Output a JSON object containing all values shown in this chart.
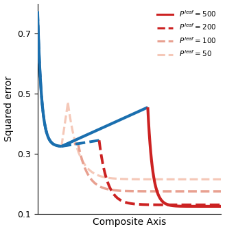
{
  "xlabel": "Composite Axis",
  "ylabel": "Squared error",
  "ylim": [
    0.1,
    0.8
  ],
  "xlim": [
    0.0,
    1.0
  ],
  "curves": [
    {
      "P_leaf": 500,
      "color_descent": "#1a6faf",
      "color_rise": "#1a6faf",
      "color_after": "#cc2222",
      "linestyle": "solid",
      "linewidth": 3.0,
      "start_y": 0.775,
      "valley_x": 0.13,
      "valley_y": 0.325,
      "peak_x": 0.6,
      "peak_y": 0.455,
      "end_y": 0.125
    },
    {
      "P_leaf": 200,
      "color_descent": "#1a6faf",
      "color_rise": "#1a6faf",
      "color_after": "#cc2222",
      "linestyle": "dashed",
      "linewidth": 2.8,
      "start_y": 0.775,
      "valley_x": 0.13,
      "valley_y": 0.325,
      "peak_x": 0.335,
      "peak_y": 0.345,
      "end_y": 0.13
    },
    {
      "P_leaf": 100,
      "color_descent": "#e8a090",
      "color_rise": "#e8a090",
      "color_after": "#e8a090",
      "linestyle": "dashed",
      "linewidth": 2.5,
      "start_y": 0.775,
      "valley_x": 0.13,
      "valley_y": 0.325,
      "peak_x": 0.22,
      "peak_y": 0.335,
      "end_y": 0.175
    },
    {
      "P_leaf": 50,
      "color_descent": "#f5c8b8",
      "color_rise": "#f5c8b8",
      "color_after": "#f5c8b8",
      "linestyle": "dashed",
      "linewidth": 2.3,
      "start_y": 0.775,
      "valley_x": 0.13,
      "valley_y": 0.325,
      "peak_x": 0.165,
      "peak_y": 0.47,
      "end_y": 0.215
    }
  ],
  "legend_labels": [
    "$P^{leaf} = 500$",
    "$P^{leaf} = 200$",
    "$P^{leaf} = 100$",
    "$P^{leaf} = 50$"
  ],
  "legend_colors": [
    "#cc2222",
    "#cc2222",
    "#e8a090",
    "#f5c8b8"
  ],
  "legend_linestyles": [
    "solid",
    "dashed",
    "dashed",
    "dashed"
  ],
  "yticks": [
    0.1,
    0.3,
    0.5,
    0.7
  ],
  "background_color": "#ffffff"
}
